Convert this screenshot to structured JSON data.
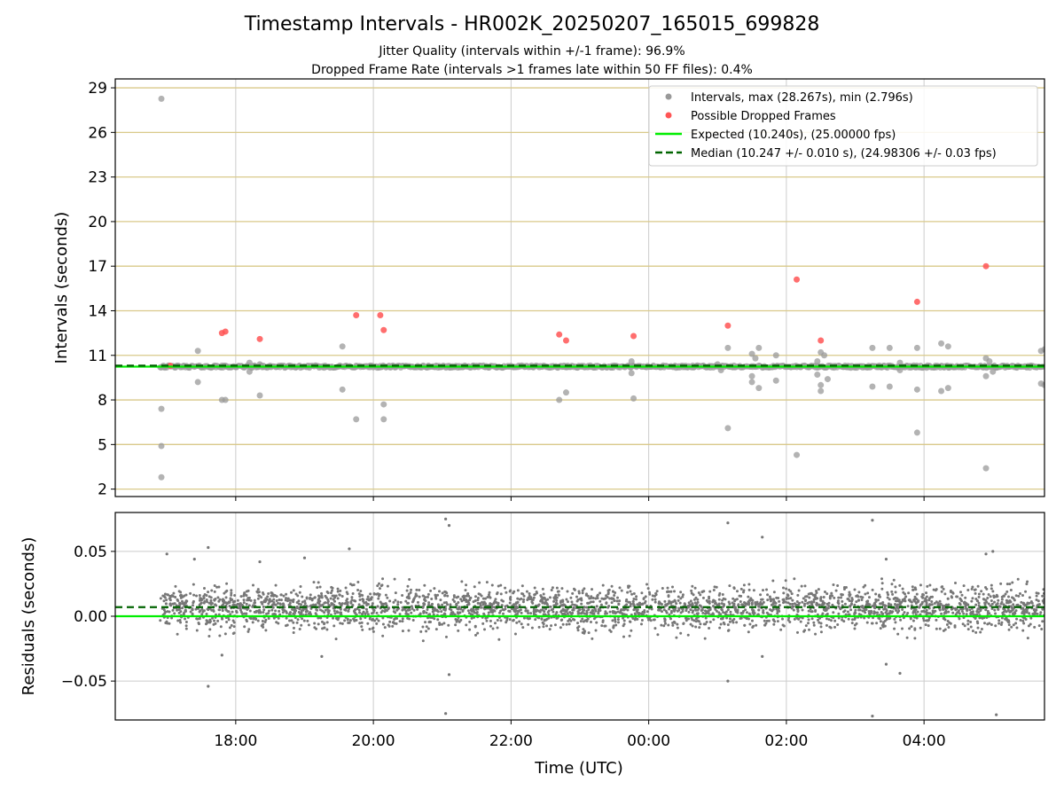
{
  "title": "Timestamp Intervals - HR002K_20250207_165015_699828",
  "subtitle_1": "Jitter Quality (intervals within +/-1 frame): 96.9%",
  "subtitle_2": "Dropped Frame Rate (intervals >1 frames late within 50 FF files): 0.4%",
  "colors": {
    "interval_points": "#999999",
    "dropped_points": "#ff5555",
    "expected_line": "#00ee00",
    "median_line": "#006400",
    "residual_points": "#777777",
    "hgrid_top": "#d9c98a",
    "grid": "#cccccc"
  },
  "chart_data": [
    {
      "type": "scatter",
      "name": "intervals",
      "xlabel": "",
      "ylabel": "Intervals (seconds)",
      "ylim": [
        1.5,
        29.6
      ],
      "yticks": [
        2,
        5,
        8,
        11,
        14,
        17,
        20,
        23,
        26,
        29
      ],
      "xlim_hours": [
        -7.75,
        5.75
      ],
      "xticks": [
        {
          "h": -6,
          "label": "18:00"
        },
        {
          "h": -4,
          "label": "20:00"
        },
        {
          "h": -2,
          "label": "22:00"
        },
        {
          "h": 0,
          "label": "00:00"
        },
        {
          "h": 2,
          "label": "02:00"
        },
        {
          "h": 4,
          "label": "04:00"
        }
      ],
      "grid": true,
      "legend_position": "top-right",
      "legend": [
        "Intervals, max (28.267s), min (2.796s)",
        "Possible Dropped Frames",
        "Expected (10.240s), (25.00000 fps)",
        "Median (10.247 +/- 0.010 s), (24.98306 +/- 0.03 fps)"
      ],
      "expected": 10.24,
      "median": 10.247,
      "cluster": {
        "x_start_hours": -7.1,
        "x_end_hours": 5.75,
        "y_min": 10.15,
        "y_max": 10.33
      },
      "series": [
        {
          "name": "Intervals, max (28.267s), min (2.796s)",
          "points": [
            [
              -7.08,
              28.267
            ],
            [
              -7.08,
              7.4
            ],
            [
              -7.08,
              4.9
            ],
            [
              -7.08,
              2.796
            ],
            [
              -7.05,
              10.3
            ],
            [
              -6.55,
              11.3
            ],
            [
              -6.55,
              9.2
            ],
            [
              -6.2,
              8.0
            ],
            [
              -6.15,
              8.0
            ],
            [
              -6.15,
              10.3
            ],
            [
              -5.8,
              10.5
            ],
            [
              -5.8,
              9.9
            ],
            [
              -5.65,
              10.4
            ],
            [
              -5.65,
              8.3
            ],
            [
              -5.6,
              10.3
            ],
            [
              -5.5,
              10.3
            ],
            [
              -5.2,
              10.2
            ],
            [
              -4.95,
              10.3
            ],
            [
              -4.45,
              11.6
            ],
            [
              -4.45,
              8.7
            ],
            [
              -4.25,
              10.3
            ],
            [
              -4.25,
              6.7
            ],
            [
              -4.05,
              10.2
            ],
            [
              -3.85,
              7.7
            ],
            [
              -3.85,
              6.7
            ],
            [
              -3.2,
              10.3
            ],
            [
              -2.9,
              10.2
            ],
            [
              -2.55,
              10.3
            ],
            [
              -2.2,
              10.2
            ],
            [
              -1.3,
              8.0
            ],
            [
              -1.2,
              8.5
            ],
            [
              -1.2,
              10.2
            ],
            [
              -0.55,
              10.2
            ],
            [
              -0.25,
              10.6
            ],
            [
              -0.25,
              9.8
            ],
            [
              -0.22,
              8.1
            ],
            [
              1.0,
              10.4
            ],
            [
              1.05,
              10.0
            ],
            [
              1.15,
              11.5
            ],
            [
              1.15,
              6.1
            ],
            [
              1.5,
              11.1
            ],
            [
              1.55,
              10.8
            ],
            [
              1.5,
              9.6
            ],
            [
              1.5,
              9.2
            ],
            [
              1.6,
              11.5
            ],
            [
              1.6,
              8.8
            ],
            [
              1.85,
              11.0
            ],
            [
              1.85,
              9.3
            ],
            [
              2.15,
              4.3
            ],
            [
              2.45,
              10.6
            ],
            [
              2.5,
              11.2
            ],
            [
              2.45,
              9.7
            ],
            [
              2.55,
              11.0
            ],
            [
              2.5,
              9.0
            ],
            [
              2.5,
              8.6
            ],
            [
              2.6,
              9.4
            ],
            [
              3.25,
              11.5
            ],
            [
              3.25,
              8.9
            ],
            [
              3.5,
              11.5
            ],
            [
              3.5,
              8.9
            ],
            [
              3.65,
              10.5
            ],
            [
              3.65,
              10.0
            ],
            [
              3.75,
              10.3
            ],
            [
              3.9,
              11.5
            ],
            [
              3.9,
              8.7
            ],
            [
              3.9,
              5.8
            ],
            [
              4.25,
              11.8
            ],
            [
              4.35,
              11.6
            ],
            [
              4.25,
              8.6
            ],
            [
              4.35,
              8.8
            ],
            [
              4.9,
              10.8
            ],
            [
              4.95,
              10.6
            ],
            [
              4.9,
              9.6
            ],
            [
              5.0,
              9.9
            ],
            [
              4.9,
              3.4
            ],
            [
              5.7,
              11.3
            ],
            [
              5.75,
              11.4
            ],
            [
              5.7,
              9.1
            ],
            [
              5.75,
              9.0
            ]
          ]
        },
        {
          "name": "Possible Dropped Frames",
          "points": [
            [
              -6.95,
              10.3
            ],
            [
              -6.2,
              12.5
            ],
            [
              -6.15,
              12.6
            ],
            [
              -5.65,
              12.1
            ],
            [
              -4.25,
              13.7
            ],
            [
              -3.9,
              13.7
            ],
            [
              -3.85,
              12.7
            ],
            [
              -1.3,
              12.4
            ],
            [
              -1.2,
              12.0
            ],
            [
              -0.22,
              12.3
            ],
            [
              1.15,
              13.0
            ],
            [
              2.15,
              16.1
            ],
            [
              2.5,
              12.0
            ],
            [
              3.9,
              14.6
            ],
            [
              4.9,
              17.0
            ]
          ]
        }
      ]
    },
    {
      "type": "scatter",
      "name": "residuals",
      "xlabel": "Time (UTC)",
      "ylabel": "Residuals (seconds)",
      "ylim": [
        -0.08,
        0.08
      ],
      "yticks": [
        {
          "v": 0.05,
          "label": "0.05"
        },
        {
          "v": 0.0,
          "label": "0.00"
        },
        {
          "v": -0.05,
          "label": "−0.05"
        }
      ],
      "xlim_hours": [
        -7.75,
        5.75
      ],
      "xticks": [
        {
          "h": -6,
          "label": "18:00"
        },
        {
          "h": -4,
          "label": "20:00"
        },
        {
          "h": -2,
          "label": "22:00"
        },
        {
          "h": 0,
          "label": "00:00"
        },
        {
          "h": 2,
          "label": "02:00"
        },
        {
          "h": 4,
          "label": "04:00"
        }
      ],
      "grid": true,
      "expected": 0.0,
      "median": 0.007,
      "cluster": {
        "x_start_hours": -7.1,
        "x_end_hours": 5.75,
        "center": 0.006,
        "spread": 0.028
      },
      "outliers": [
        [
          -7.0,
          0.048
        ],
        [
          -6.6,
          0.044
        ],
        [
          -6.4,
          0.053
        ],
        [
          -6.4,
          -0.054
        ],
        [
          -6.2,
          -0.03
        ],
        [
          -5.65,
          0.042
        ],
        [
          -5.0,
          0.045
        ],
        [
          -4.75,
          -0.031
        ],
        [
          -4.35,
          0.052
        ],
        [
          -2.95,
          0.075
        ],
        [
          -2.9,
          0.07
        ],
        [
          -2.95,
          -0.075
        ],
        [
          -2.9,
          -0.045
        ],
        [
          1.15,
          0.072
        ],
        [
          1.15,
          -0.05
        ],
        [
          1.65,
          0.061
        ],
        [
          1.65,
          -0.031
        ],
        [
          3.25,
          0.074
        ],
        [
          3.25,
          -0.077
        ],
        [
          3.45,
          0.044
        ],
        [
          3.45,
          -0.037
        ],
        [
          3.65,
          -0.044
        ],
        [
          4.9,
          0.048
        ],
        [
          5.05,
          -0.076
        ],
        [
          5.0,
          0.05
        ]
      ]
    }
  ]
}
